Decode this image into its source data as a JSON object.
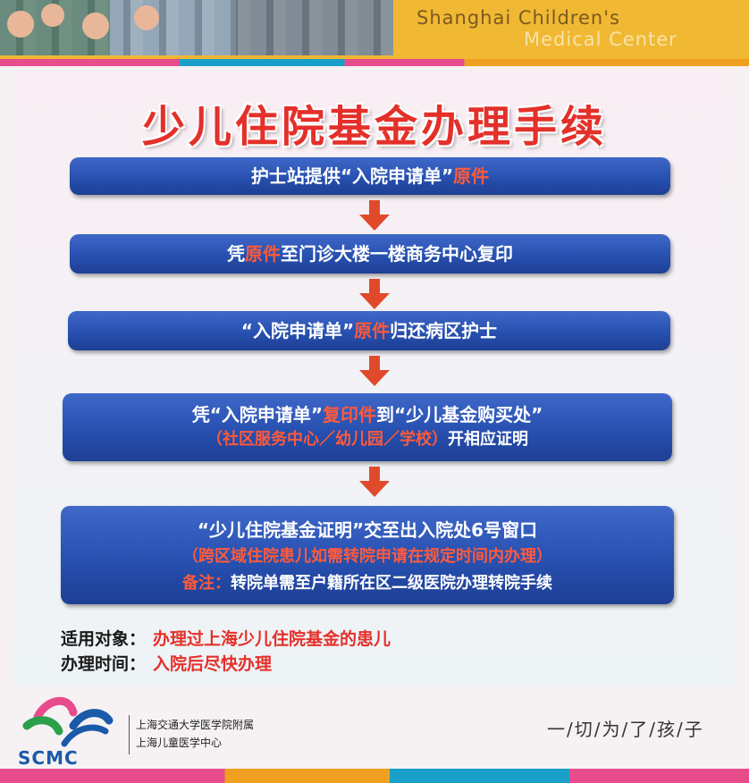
{
  "header": {
    "title_line1": "Shanghai Children's",
    "title_line2": "Medical Center"
  },
  "main_title": "少儿住院基金办理手续",
  "steps": [
    {
      "parts": [
        {
          "text": "护士站提供“入院申请单”",
          "style": "white"
        },
        {
          "text": "原件",
          "style": "red"
        }
      ]
    },
    {
      "parts": [
        {
          "text": "凭",
          "style": "white"
        },
        {
          "text": "原件",
          "style": "red"
        },
        {
          "text": "至门诊大楼一楼商务中心复印",
          "style": "white"
        }
      ]
    },
    {
      "parts": [
        {
          "text": "“入院申请单”",
          "style": "white"
        },
        {
          "text": "原件",
          "style": "red"
        },
        {
          "text": "归还病区护士",
          "style": "white"
        }
      ]
    },
    {
      "line1": [
        {
          "text": "凭“入院申请单”",
          "style": "white"
        },
        {
          "text": "复印件",
          "style": "red"
        },
        {
          "text": "到“少儿基金购买处”",
          "style": "white"
        }
      ],
      "line2": [
        {
          "text": "（社区服务中心／幼儿园／学校）",
          "style": "red"
        },
        {
          "text": "开相应证明",
          "style": "white"
        }
      ]
    },
    {
      "line1": "“少儿住院基金证明”交至出入院处6号窗口",
      "line2": "（跨区域住院患儿如需转院申请在规定时间内办理）",
      "line3_label": "备注：",
      "line3_text": "转院单需至户籍所在区二级医院办理转院手续"
    }
  ],
  "info": {
    "target_label": "适用对象：",
    "target_value": "办理过上海少儿住院基金的患儿",
    "time_label": "办理时间：",
    "time_value": "入院后尽快办理"
  },
  "footer": {
    "logo_text": "SCMC",
    "institution_line1": "上海交通大学医学院附属",
    "institution_line2": "上海儿童医学中心",
    "slogan": "一/切/为/了/孩/子"
  },
  "colors": {
    "accent_red": "#e4302a",
    "step_blue": "#2750b0",
    "header_yellow": "#f1b833"
  },
  "icons": [
    "down-arrow-icon",
    "scmc-logo-icon"
  ]
}
